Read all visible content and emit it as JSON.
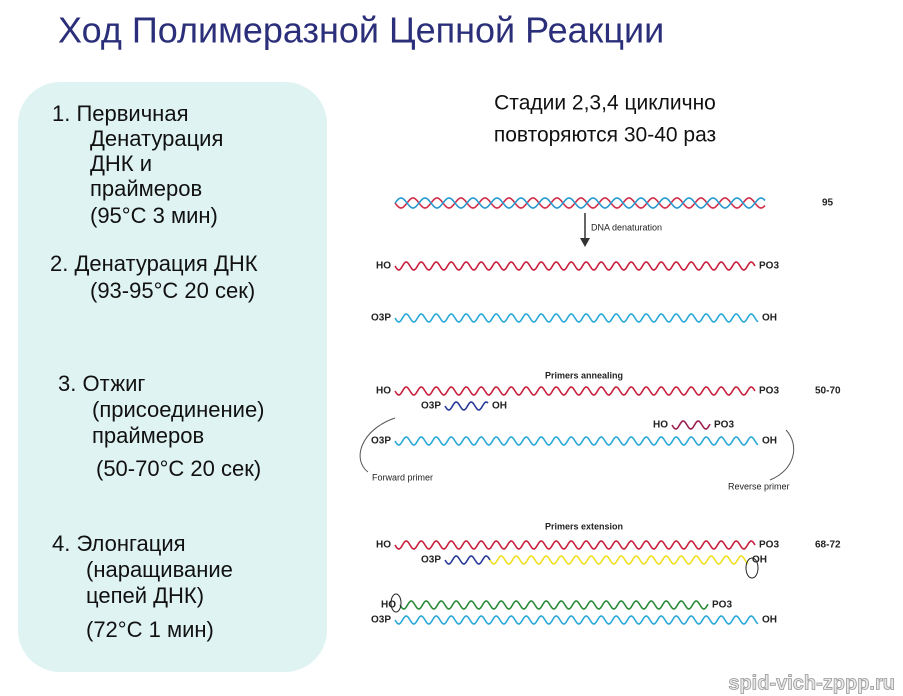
{
  "title": "Ход Полимеразной Цепной Реакции",
  "steps": [
    {
      "lines": [
        "1. Первичная",
        "Денатурация",
        "ДНК и",
        "праймеров",
        "(95°С 3 мин)"
      ]
    },
    {
      "lines": [
        "2. Денатурация ДНК",
        "(93-95°С 20 сек)"
      ]
    },
    {
      "lines": [
        "3. Отжиг",
        "(присоединение)",
        "праймеров",
        "(50-70°С 20 сек)"
      ]
    },
    {
      "lines": [
        "4. Элонгация",
        "(наращивание",
        "цепей ДНК)",
        "(72°С 1 мин)"
      ]
    }
  ],
  "note": [
    "Стадии 2,3,4 циклично",
    "повторяются 30-40 раз"
  ],
  "diagram": {
    "temp_denaturation": "95",
    "denaturation_label": "DNA denaturation",
    "annealing_label": "Primers annealing",
    "temp_annealing": "50-70",
    "forward_primer": "Forward primer",
    "reverse_primer": "Reverse primer",
    "extension_label": "Primers extension",
    "temp_extension": "68-72",
    "strands": [
      {
        "left": "HO",
        "right": "PO3"
      },
      {
        "left": "O3P",
        "right": "OH"
      },
      {
        "left": "HO",
        "right": "PO3"
      },
      {
        "left": "O3P",
        "right": "OH"
      },
      {
        "left": "HO",
        "right": "PO3"
      },
      {
        "left": "O3P",
        "right": "OH"
      },
      {
        "left": "HO",
        "right": "PO3"
      },
      {
        "left": "O3P",
        "right": "OH"
      },
      {
        "left": "HO",
        "right": "PO3"
      },
      {
        "left": "O3P",
        "right": "OH"
      }
    ]
  },
  "watermark": "spid-vich-zppp.ru"
}
